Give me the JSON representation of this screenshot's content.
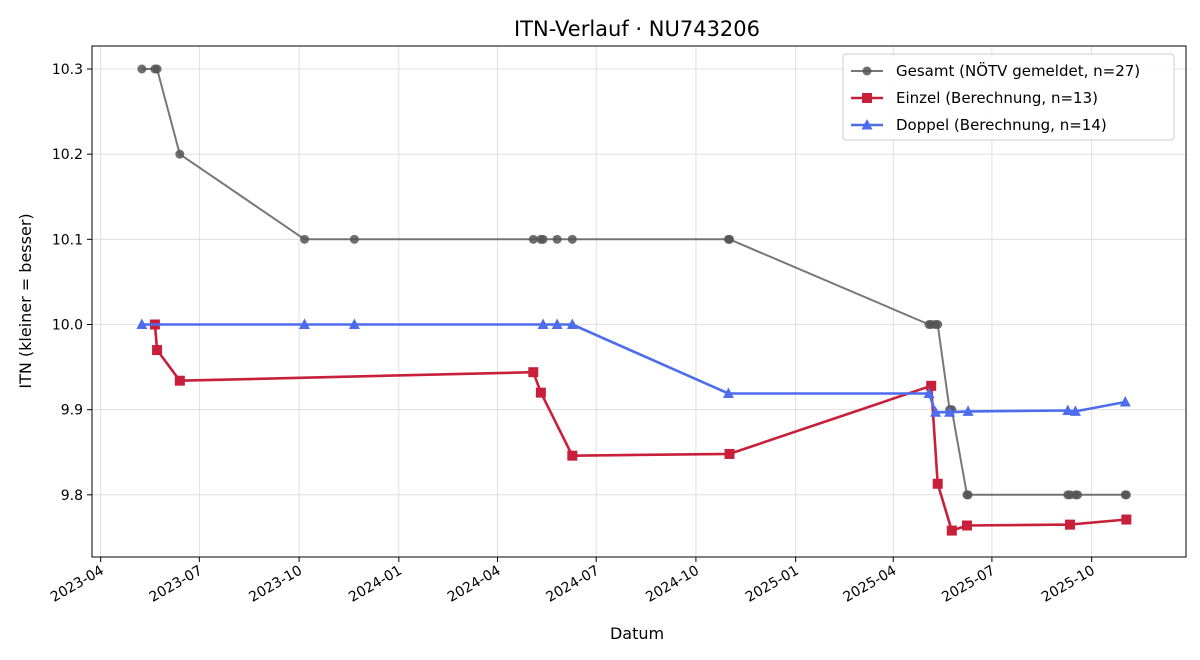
{
  "chart_data": {
    "type": "line",
    "title": "ITN-Verlauf · NU743206",
    "xlabel": "Datum",
    "ylabel": "ITN  (kleiner = besser)",
    "xlim": [
      "2023-03-24",
      "2025-12-27"
    ],
    "ylim": [
      9.727,
      10.327
    ],
    "x_ticks": [
      "2023-04",
      "2023-07",
      "2023-10",
      "2024-01",
      "2024-04",
      "2024-07",
      "2024-10",
      "2025-01",
      "2025-04",
      "2025-07",
      "2025-10"
    ],
    "y_ticks": [
      "9.8",
      "9.9",
      "10.0",
      "10.1",
      "10.2",
      "10.3"
    ],
    "grid": true,
    "legend_position": "top-right",
    "series": [
      {
        "name": "Gesamt (NÖTV gemeldet, n=27)",
        "color": "#555555",
        "marker": "circle",
        "points": [
          [
            "2023-05-09",
            10.3
          ],
          [
            "2023-05-21",
            10.3
          ],
          [
            "2023-05-23",
            10.3
          ],
          [
            "2023-06-13",
            10.2
          ],
          [
            "2023-10-06",
            10.1
          ],
          [
            "2023-11-21",
            10.1
          ],
          [
            "2024-05-04",
            10.1
          ],
          [
            "2024-05-11",
            10.1
          ],
          [
            "2024-05-13",
            10.1
          ],
          [
            "2024-05-26",
            10.1
          ],
          [
            "2024-06-09",
            10.1
          ],
          [
            "2024-10-31",
            10.1
          ],
          [
            "2024-11-01",
            10.1
          ],
          [
            "2025-05-04",
            10.0
          ],
          [
            "2025-05-06",
            10.0
          ],
          [
            "2025-05-10",
            10.0
          ],
          [
            "2025-05-12",
            10.0
          ],
          [
            "2025-05-23",
            9.9
          ],
          [
            "2025-05-25",
            9.9
          ],
          [
            "2025-06-08",
            9.8
          ],
          [
            "2025-06-09",
            9.8
          ],
          [
            "2025-09-09",
            9.8
          ],
          [
            "2025-09-11",
            9.8
          ],
          [
            "2025-09-16",
            9.8
          ],
          [
            "2025-09-18",
            9.8
          ],
          [
            "2025-11-01",
            9.8
          ],
          [
            "2025-11-02",
            9.8
          ]
        ]
      },
      {
        "name": "Einzel (Berechnung, n=13)",
        "color": "#c8203b",
        "marker": "square",
        "points": [
          [
            "2023-05-21",
            10.0
          ],
          [
            "2023-05-23",
            9.97
          ],
          [
            "2023-06-13",
            9.934
          ],
          [
            "2024-05-04",
            9.944
          ],
          [
            "2024-05-11",
            9.92
          ],
          [
            "2024-06-09",
            9.846
          ],
          [
            "2024-11-01",
            9.848
          ],
          [
            "2025-05-06",
            9.928
          ],
          [
            "2025-05-12",
            9.813
          ],
          [
            "2025-05-25",
            9.758
          ],
          [
            "2025-06-08",
            9.764
          ],
          [
            "2025-09-11",
            9.765
          ],
          [
            "2025-11-02",
            9.771
          ]
        ]
      },
      {
        "name": "Doppel (Berechnung, n=14)",
        "color": "#4d6ded",
        "marker": "triangle",
        "points": [
          [
            "2023-05-09",
            10.0
          ],
          [
            "2023-10-06",
            10.0
          ],
          [
            "2023-11-21",
            10.0
          ],
          [
            "2024-05-13",
            10.0
          ],
          [
            "2024-05-26",
            10.0
          ],
          [
            "2024-06-09",
            10.0
          ],
          [
            "2024-10-31",
            9.919
          ],
          [
            "2025-05-04",
            9.919
          ],
          [
            "2025-05-10",
            9.897
          ],
          [
            "2025-05-23",
            9.897
          ],
          [
            "2025-06-09",
            9.898
          ],
          [
            "2025-09-09",
            9.899
          ],
          [
            "2025-09-16",
            9.898
          ],
          [
            "2025-11-01",
            9.909
          ]
        ]
      }
    ]
  }
}
